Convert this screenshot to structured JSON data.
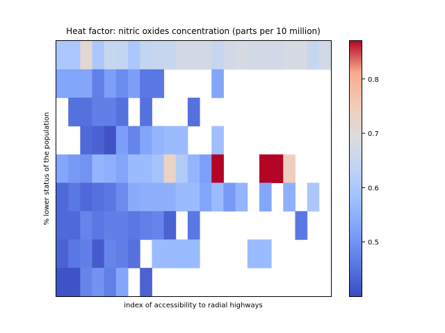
{
  "chart_data": {
    "type": "heatmap",
    "title": "Heat factor: nitric oxides concentration (parts per 10 million)",
    "xlabel": "index of accessibility to radial highways",
    "ylabel": "% lower status of the population",
    "colormap": "coolwarm",
    "clim": [
      0.4,
      0.87
    ],
    "colorbar_ticks": [
      0.5,
      0.6,
      0.7,
      0.8
    ],
    "colorbar_tick_labels": [
      "0.5",
      "0.6",
      "0.7",
      "0.8"
    ],
    "n_cols": 23,
    "n_rows": 9,
    "grid": false,
    "values": [
      [
        0.6,
        0.6,
        0.71,
        0.6,
        0.65,
        0.64,
        0.6,
        0.64,
        0.65,
        0.65,
        0.67,
        0.67,
        0.67,
        0.65,
        0.67,
        0.68,
        0.67,
        0.67,
        0.67,
        0.68,
        0.68,
        0.65,
        0.67
      ],
      [
        0.53,
        0.53,
        0.53,
        0.47,
        0.52,
        0.49,
        0.52,
        0.46,
        0.46,
        null,
        null,
        null,
        null,
        0.53,
        null,
        null,
        null,
        null,
        null,
        null,
        null,
        null,
        null
      ],
      [
        null,
        0.45,
        0.45,
        0.47,
        0.47,
        0.45,
        null,
        0.45,
        null,
        null,
        null,
        0.45,
        null,
        null,
        null,
        null,
        null,
        null,
        null,
        null,
        null,
        null,
        null
      ],
      [
        null,
        null,
        0.44,
        0.43,
        0.41,
        0.52,
        0.48,
        0.53,
        0.56,
        0.57,
        0.57,
        null,
        null,
        0.58,
        null,
        null,
        null,
        null,
        null,
        null,
        null,
        null,
        null
      ],
      [
        0.53,
        0.51,
        0.5,
        0.56,
        0.55,
        0.53,
        0.57,
        0.57,
        0.59,
        0.73,
        0.61,
        0.56,
        0.52,
        0.87,
        null,
        null,
        null,
        0.87,
        0.87,
        0.74,
        null,
        null,
        null
      ],
      [
        0.44,
        0.46,
        0.44,
        0.45,
        0.46,
        0.49,
        0.54,
        0.55,
        0.55,
        0.55,
        0.57,
        0.57,
        0.53,
        0.57,
        0.51,
        0.56,
        null,
        0.53,
        null,
        0.55,
        null,
        0.6,
        null
      ],
      [
        0.44,
        0.44,
        0.48,
        0.46,
        0.47,
        0.47,
        0.46,
        0.47,
        0.48,
        0.43,
        null,
        0.46,
        null,
        null,
        null,
        null,
        null,
        null,
        null,
        null,
        0.46,
        null,
        null
      ],
      [
        0.43,
        0.46,
        0.47,
        0.42,
        0.48,
        0.47,
        0.45,
        null,
        0.57,
        0.57,
        0.57,
        0.57,
        null,
        null,
        null,
        null,
        0.57,
        0.57,
        null,
        null,
        null,
        null,
        null
      ],
      [
        0.41,
        0.41,
        0.48,
        0.5,
        0.47,
        0.53,
        null,
        0.43,
        null,
        null,
        null,
        null,
        null,
        null,
        null,
        null,
        null,
        null,
        null,
        null,
        null,
        null,
        null
      ]
    ]
  }
}
